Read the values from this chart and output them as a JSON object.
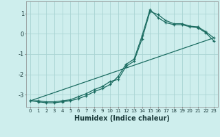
{
  "xlabel": "Humidex (Indice chaleur)",
  "bg_color": "#ceeeed",
  "grid_color": "#aad4d3",
  "line_color": "#1a6b60",
  "xlim": [
    -0.5,
    23.5
  ],
  "ylim": [
    -3.6,
    1.6
  ],
  "xticks": [
    0,
    1,
    2,
    3,
    4,
    5,
    6,
    7,
    8,
    9,
    10,
    11,
    12,
    13,
    14,
    15,
    16,
    17,
    18,
    19,
    20,
    21,
    22,
    23
  ],
  "yticks": [
    -3,
    -2,
    -1,
    0,
    1
  ],
  "line1_x": [
    0,
    1,
    2,
    3,
    4,
    5,
    6,
    7,
    8,
    9,
    10,
    11,
    12,
    13,
    14,
    15,
    16,
    17,
    18,
    19,
    20,
    21,
    22,
    23
  ],
  "line1_y": [
    -3.3,
    -3.35,
    -3.4,
    -3.4,
    -3.35,
    -3.3,
    -3.2,
    -3.05,
    -2.85,
    -2.7,
    -2.5,
    -2.1,
    -1.5,
    -1.25,
    -0.1,
    1.2,
    0.8,
    0.55,
    0.45,
    0.45,
    0.35,
    0.3,
    0.05,
    -0.35
  ],
  "line2_x": [
    0,
    1,
    2,
    3,
    4,
    5,
    6,
    7,
    8,
    9,
    10,
    11,
    12,
    13,
    14,
    15,
    16,
    17,
    18,
    19,
    20,
    21,
    22,
    23
  ],
  "line2_y": [
    -3.3,
    -3.3,
    -3.35,
    -3.35,
    -3.3,
    -3.25,
    -3.1,
    -2.95,
    -2.75,
    -2.6,
    -2.35,
    -2.25,
    -1.6,
    -1.35,
    -0.25,
    1.1,
    0.95,
    0.65,
    0.5,
    0.5,
    0.38,
    0.35,
    0.1,
    -0.2
  ],
  "line3_x": [
    0,
    23
  ],
  "line3_y": [
    -3.3,
    -0.2
  ]
}
